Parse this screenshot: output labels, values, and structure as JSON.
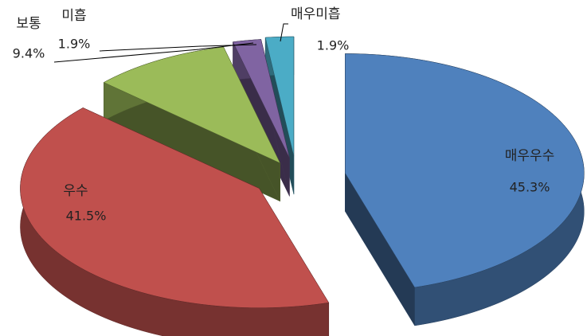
{
  "chart_data": {
    "type": "pie",
    "categories": [
      "매우우수",
      "우수",
      "보통",
      "미흡",
      "매우미흡"
    ],
    "values": [
      45.3,
      41.5,
      9.4,
      1.9,
      1.9
    ],
    "value_labels": [
      "45.3%",
      "41.5%",
      "9.4%",
      "1.9%",
      "1.9%"
    ],
    "colors": [
      "#4f81bd",
      "#c0504d",
      "#9bbb59",
      "#8064a2",
      "#4bacc6"
    ]
  }
}
